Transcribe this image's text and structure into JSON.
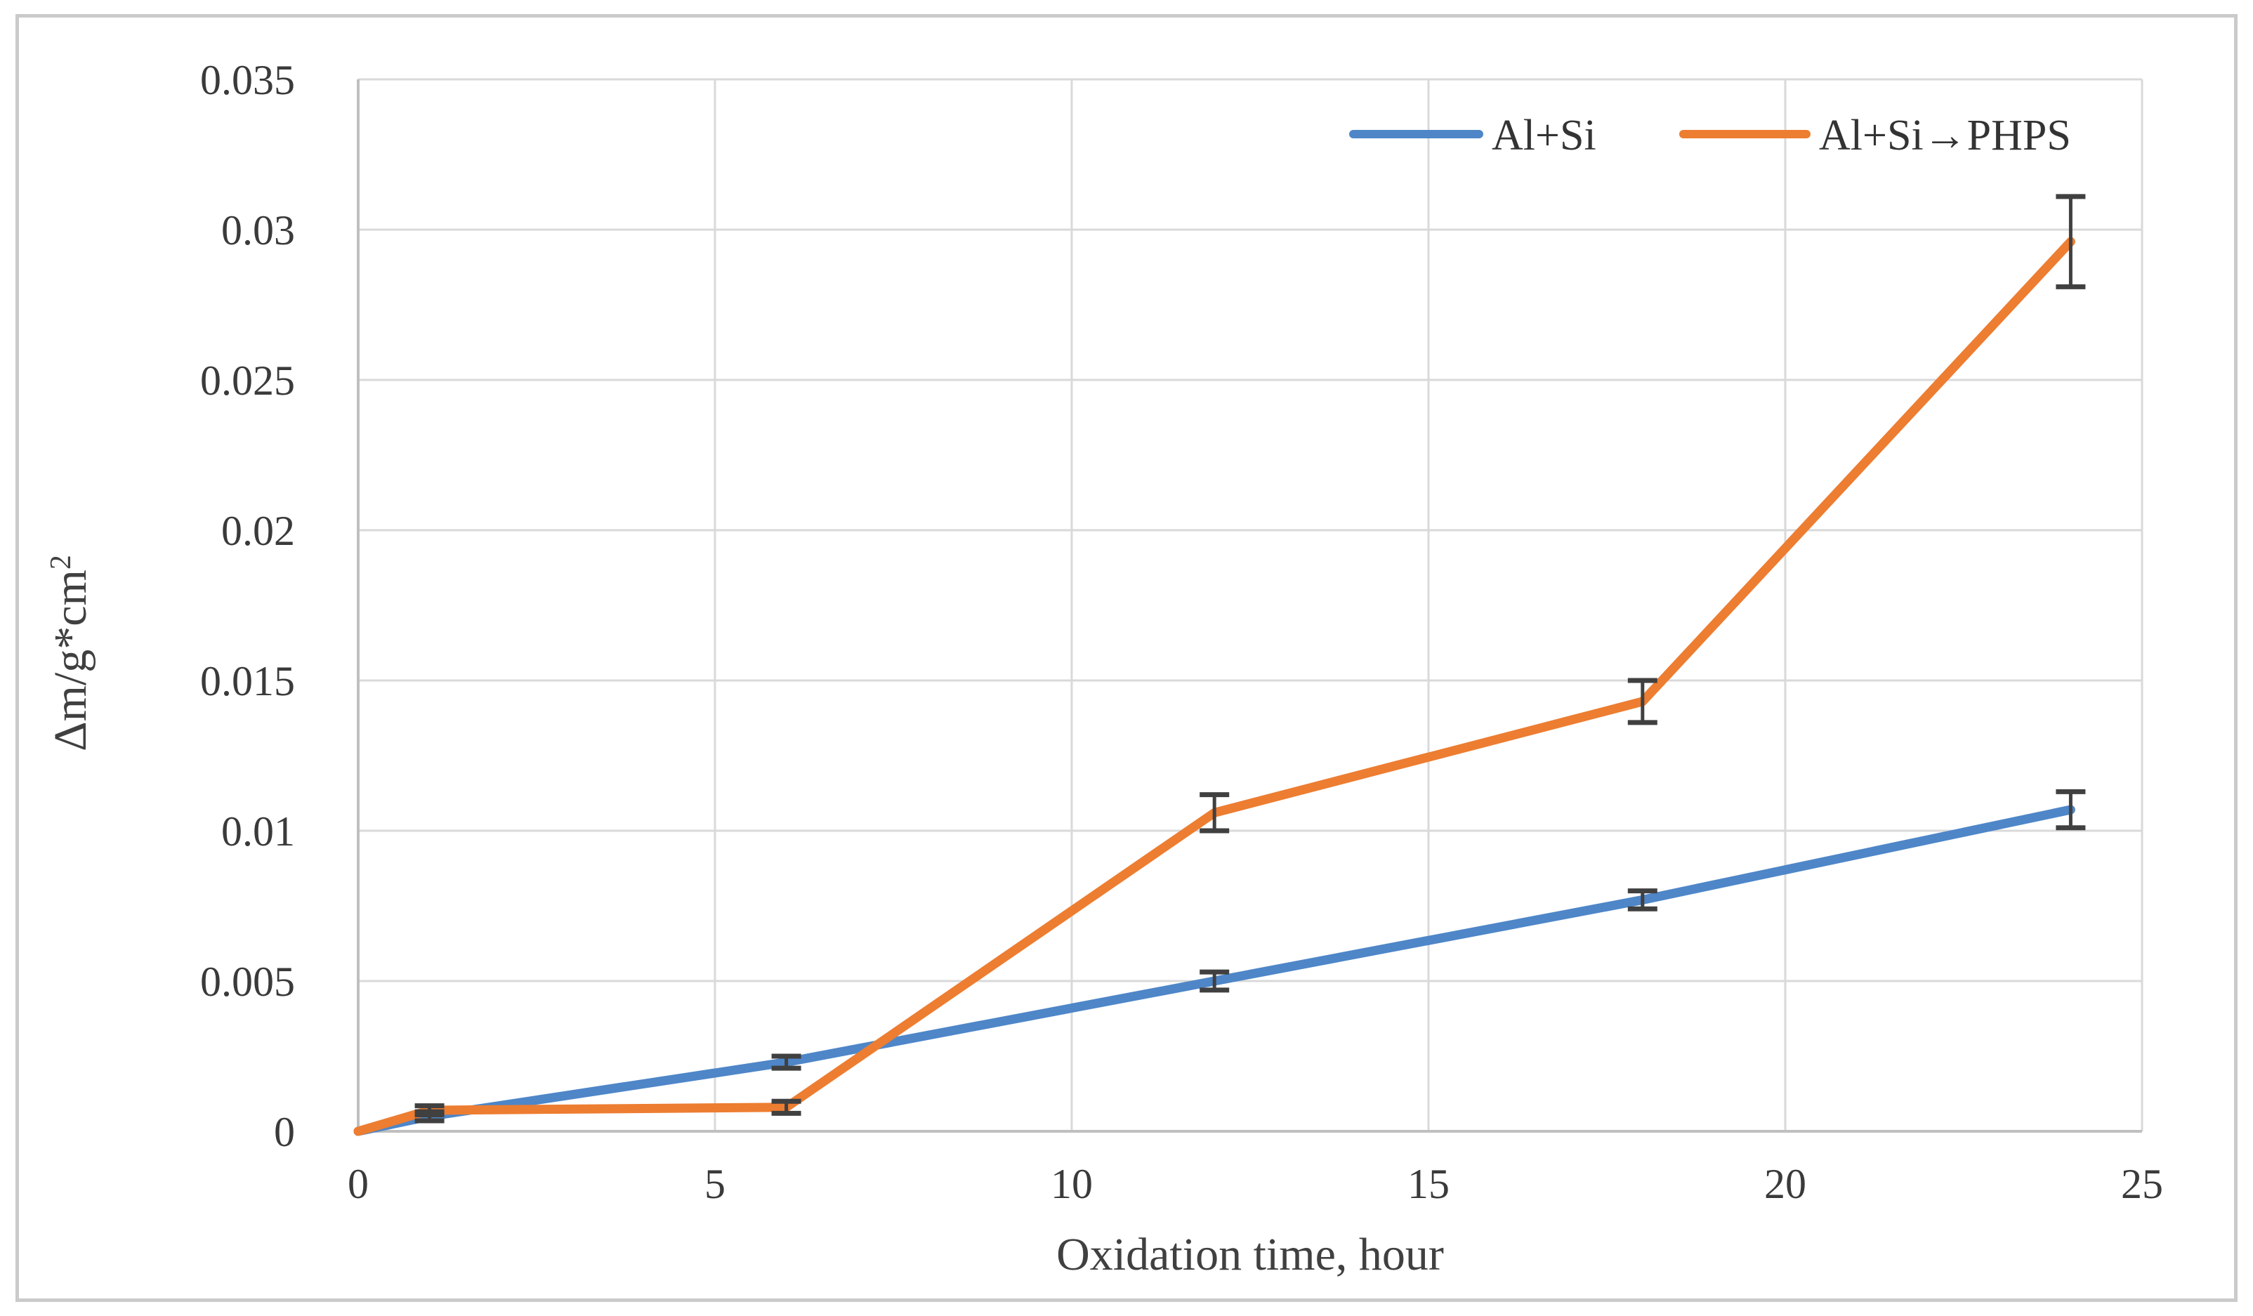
{
  "figure": {
    "background": "#ffffff",
    "border_color": "#cbcbcb"
  },
  "chart_data": {
    "type": "line",
    "title": "",
    "xlabel": "Oxidation time, hour",
    "ylabel": "Δm/g*cm²",
    "ylabel_base": "Δm/g*cm",
    "ylabel_superscript": "2",
    "xlim": [
      0,
      25
    ],
    "ylim": [
      0,
      0.035
    ],
    "xticks": [
      0,
      5,
      10,
      15,
      20,
      25
    ],
    "xtick_labels": [
      "0",
      "5",
      "10",
      "15",
      "20",
      "25"
    ],
    "yticks": [
      0,
      0.005,
      0.01,
      0.015,
      0.02,
      0.025,
      0.03,
      0.035
    ],
    "ytick_labels": [
      "0",
      "0.005",
      "0.01",
      "0.015",
      "0.02",
      "0.025",
      "0.03",
      "0.035"
    ],
    "grid": true,
    "gridline_color": "#d9d9d9",
    "axis_color": "#bfbfbf",
    "tick_label_color": "#3a3a3a",
    "error_bar_color": "#404040",
    "legend": {
      "position": "top-right-inside",
      "entries": [
        "Al+Si",
        "Al+Si→PHPS"
      ]
    },
    "series": [
      {
        "name": "Al+Si",
        "color": "#4e86c8",
        "x": [
          0,
          1,
          6,
          12,
          18,
          24
        ],
        "y": [
          0,
          0.0005,
          0.0023,
          0.005,
          0.0077,
          0.0107
        ],
        "yerr": [
          0,
          0.00015,
          0.0002,
          0.0003,
          0.0003,
          0.0006
        ]
      },
      {
        "name": "Al+Si→PHPS",
        "color": "#ed7d31",
        "x": [
          0,
          1,
          6,
          12,
          18,
          24
        ],
        "y": [
          0,
          0.0007,
          0.0008,
          0.0106,
          0.0143,
          0.0296
        ],
        "yerr": [
          0,
          0.00015,
          0.0002,
          0.0006,
          0.0007,
          0.0015
        ]
      }
    ]
  }
}
